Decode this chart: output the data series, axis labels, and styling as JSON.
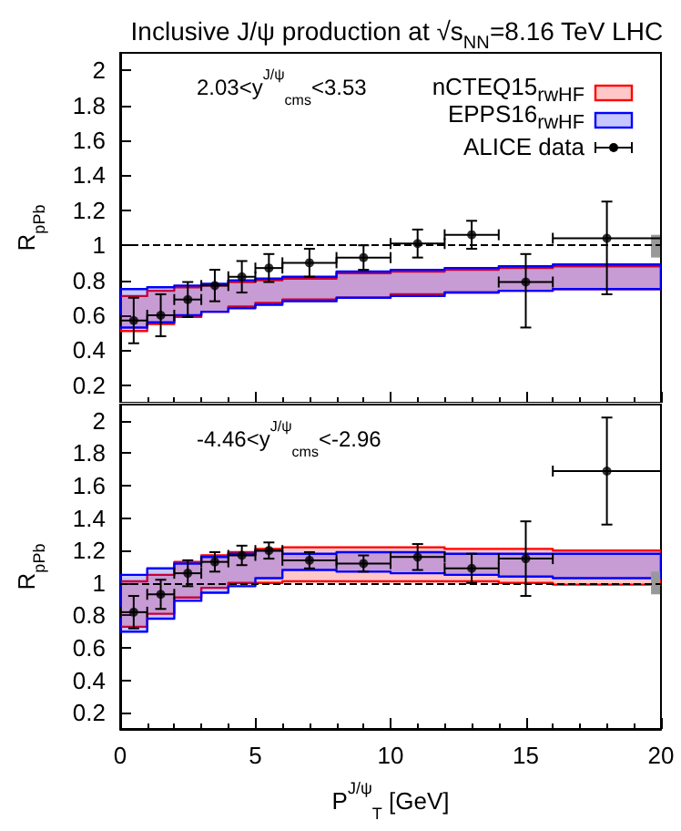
{
  "chart_data": [
    {
      "type": "scatter",
      "title": "Inclusive J/ψ production at √s$_{NN}$=8.16 TeV LHC",
      "ylabel": "R$_{pPb}$",
      "annotations": [
        "2.03<y$^{J/ψ}$$_{cms}$<3.53"
      ],
      "xlim": [
        0,
        20
      ],
      "xticks": [
        0,
        5,
        10,
        15,
        20
      ],
      "ylim": [
        0.1,
        2.1
      ],
      "yticks": [
        0.2,
        0.4,
        0.6,
        0.8,
        1,
        1.2,
        1.4,
        1.6,
        1.8,
        2
      ],
      "tick_labels": "y",
      "legend": "top right",
      "ref_lines": [
        {
          "axis": "y",
          "value": 1,
          "line_style": "dashed",
          "color": "#000000"
        }
      ],
      "series": [
        {
          "name": "nCTEQ15$_{rwHF}$",
          "type": "step",
          "color": "#ff0000",
          "x": [
            0,
            1,
            2,
            3,
            4,
            5,
            6,
            8,
            10,
            12,
            14,
            16,
            20
          ],
          "values": [
            null,
            null,
            null,
            null,
            null,
            null,
            null,
            null,
            null,
            null,
            null,
            null,
            null
          ],
          "lower": [
            0.51,
            0.55,
            0.59,
            0.62,
            0.65,
            0.67,
            0.69,
            0.7,
            0.72,
            0.73,
            0.74,
            0.75,
            0.75
          ],
          "upper": [
            0.71,
            0.74,
            0.76,
            0.77,
            0.79,
            0.8,
            0.81,
            0.84,
            0.85,
            0.86,
            0.87,
            0.88,
            0.88
          ]
        },
        {
          "name": "EPPS16$_{rwHF}$",
          "type": "step",
          "color": "#0000ff",
          "x": [
            0,
            1,
            2,
            3,
            4,
            5,
            6,
            8,
            10,
            12,
            14,
            16,
            20
          ],
          "values": [
            null,
            null,
            null,
            null,
            null,
            null,
            null,
            null,
            null,
            null,
            null,
            null,
            null
          ],
          "lower": [
            0.53,
            0.56,
            0.6,
            0.62,
            0.64,
            0.66,
            0.68,
            0.7,
            0.71,
            0.73,
            0.74,
            0.75,
            0.75
          ],
          "upper": [
            0.75,
            0.76,
            0.77,
            0.78,
            0.8,
            0.81,
            0.82,
            0.85,
            0.86,
            0.87,
            0.88,
            0.89,
            0.89
          ]
        },
        {
          "name": "ALICE data",
          "color": "#000000",
          "marker": "circle",
          "x": [
            0.5,
            1.5,
            2.5,
            3.5,
            4.5,
            5.5,
            7,
            9,
            11,
            13,
            15,
            18
          ],
          "values": [
            0.57,
            0.6,
            0.69,
            0.77,
            0.82,
            0.87,
            0.9,
            0.93,
            1.01,
            1.06,
            0.79,
            1.04
          ],
          "errors": [
            0.13,
            0.12,
            0.1,
            0.09,
            0.09,
            0.08,
            0.08,
            0.07,
            0.08,
            0.08,
            [
              0.53,
              0.95
            ],
            [
              0.72,
              1.25
            ]
          ],
          "xerrors": [
            0.5,
            0.5,
            0.5,
            0.5,
            0.5,
            0.5,
            1,
            1,
            1,
            1,
            1,
            2
          ]
        },
        {
          "type": "bar",
          "color": "#999999",
          "x": [
            19.8
          ],
          "base": [
            0.93
          ],
          "values": [
            0.13
          ]
        }
      ]
    },
    {
      "type": "scatter",
      "xlabel": "P$^{J/ψ}$$_{T}$ [GeV]",
      "ylabel": "R$_{pPb}$",
      "annotations": [
        "-4.46<y$^{J/ψ}$$_{cms}$<-2.96"
      ],
      "xlim": [
        0,
        20
      ],
      "xticks": [
        0,
        5,
        10,
        15,
        20
      ],
      "ylim": [
        0.1,
        2.1
      ],
      "yticks": [
        0.2,
        0.4,
        0.6,
        0.8,
        1,
        1.2,
        1.4,
        1.6,
        1.8,
        2
      ],
      "ref_lines": [
        {
          "axis": "y",
          "value": 1,
          "line_style": "dashed",
          "color": "#000000"
        }
      ],
      "series": [
        {
          "type": "step",
          "color": "#ff0000",
          "x": [
            0,
            1,
            2,
            3,
            4,
            5,
            6,
            8,
            10,
            12,
            14,
            16,
            20
          ],
          "values": [
            null,
            null,
            null,
            null,
            null,
            null,
            null,
            null,
            null,
            null,
            null,
            null,
            null
          ],
          "lower": [
            0.73,
            0.81,
            0.91,
            0.97,
            1.0,
            1.0,
            1.01,
            1.01,
            1.01,
            1.01,
            1.0,
            0.99,
            0.99
          ],
          "upper": [
            1.01,
            1.05,
            1.13,
            1.17,
            1.19,
            1.21,
            1.22,
            1.22,
            1.22,
            1.21,
            1.21,
            1.2,
            1.2
          ]
        },
        {
          "type": "step",
          "color": "#0000ff",
          "x": [
            0,
            1,
            2,
            3,
            4,
            5,
            6,
            8,
            10,
            12,
            14,
            16,
            20
          ],
          "values": [
            null,
            null,
            null,
            null,
            null,
            null,
            null,
            null,
            null,
            null,
            null,
            null,
            null
          ],
          "lower": [
            0.7,
            0.78,
            0.89,
            0.94,
            0.98,
            1.03,
            1.08,
            1.07,
            1.06,
            1.05,
            1.04,
            1.03,
            1.03
          ],
          "upper": [
            1.05,
            1.09,
            1.12,
            1.16,
            1.18,
            1.2,
            1.18,
            1.19,
            1.19,
            1.18,
            1.18,
            1.18,
            1.18
          ]
        },
        {
          "color": "#000000",
          "marker": "circle",
          "x": [
            0.5,
            1.5,
            2.5,
            3.5,
            4.5,
            5.5,
            7,
            9,
            11,
            13,
            15,
            18
          ],
          "values": [
            0.82,
            0.93,
            1.06,
            1.13,
            1.17,
            1.2,
            1.14,
            1.12,
            1.16,
            1.09,
            1.15,
            1.69
          ],
          "errors": [
            0.1,
            0.09,
            0.08,
            0.06,
            0.06,
            0.05,
            0.05,
            0.05,
            0.08,
            0.09,
            0.23,
            0.33
          ],
          "xerrors": [
            0.5,
            0.5,
            0.5,
            0.5,
            0.5,
            0.5,
            1,
            1,
            1,
            1,
            1,
            2
          ]
        },
        {
          "type": "bar",
          "color": "#999999",
          "x": [
            19.8
          ],
          "base": [
            0.93
          ],
          "values": [
            0.14
          ]
        }
      ]
    }
  ]
}
